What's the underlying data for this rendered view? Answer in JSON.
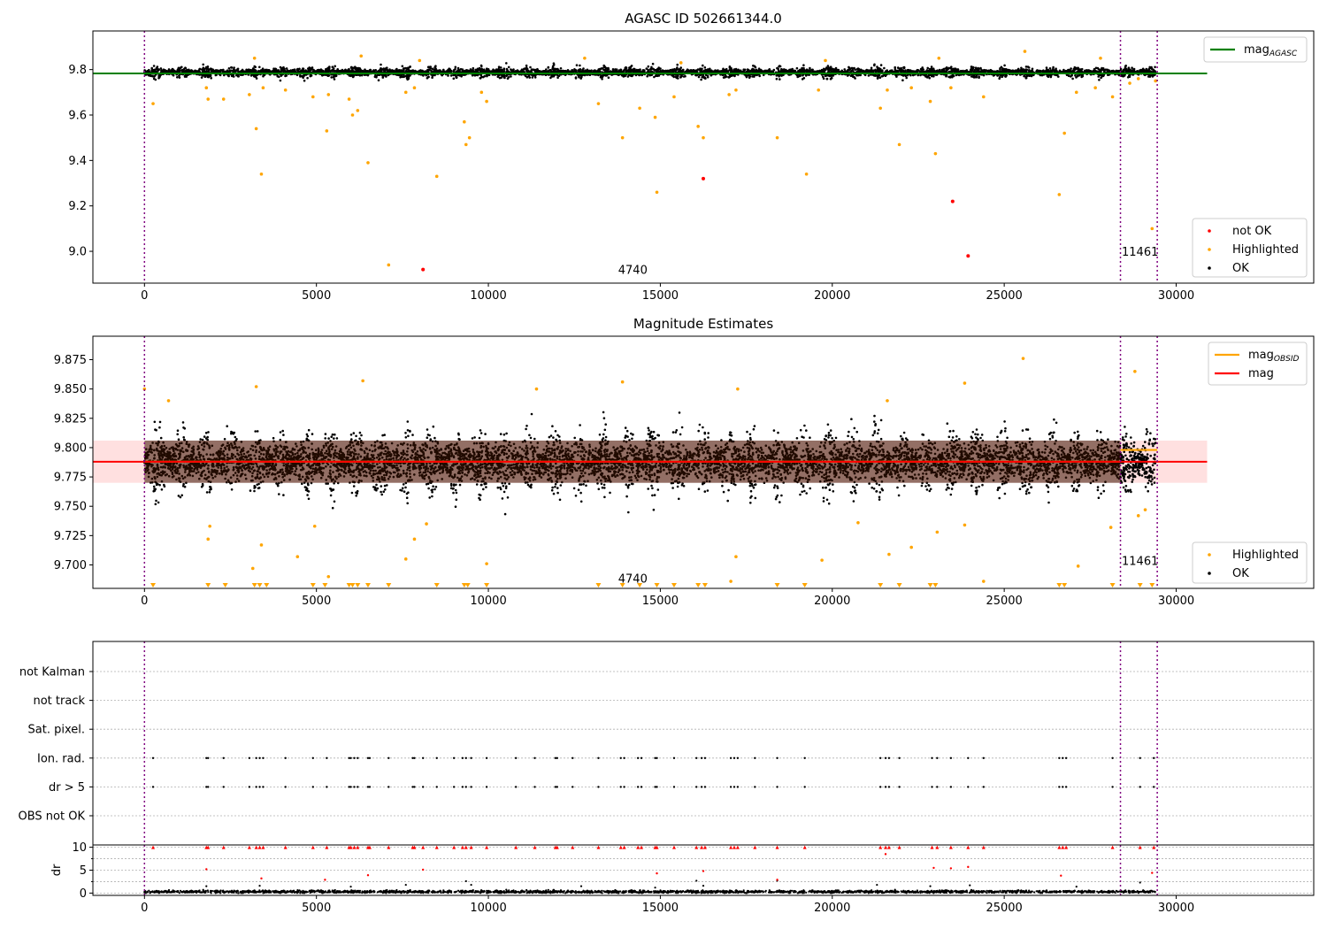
{
  "chart_data": [
    {
      "type": "scatter",
      "title": "AGASC ID 502661344.0",
      "xlim": [
        -1500,
        34000
      ],
      "ylim": [
        8.86,
        9.97
      ],
      "xticks": [
        0,
        5000,
        10000,
        15000,
        20000,
        25000,
        30000
      ],
      "yticks": [
        9.0,
        9.2,
        9.4,
        9.6,
        9.8
      ],
      "ytick_labels": [
        "9.0",
        "9.2",
        "9.4",
        "9.6",
        "9.8"
      ],
      "grid": false,
      "vlines": [
        0,
        28380,
        29450
      ],
      "obsid_annotations": [
        {
          "label": "4740",
          "x": 14200,
          "y": 8.9
        },
        {
          "label": "11461",
          "x": 28950,
          "y": 8.98
        }
      ],
      "reference_line": {
        "name": "mag",
        "subscript": "AGASC",
        "value": 9.783,
        "x_range": [
          -1500,
          30900
        ],
        "color": "#008000"
      },
      "ok_band": {
        "center": 9.788,
        "spread": 0.04,
        "x_range": [
          0,
          29400
        ],
        "color": "#000000"
      },
      "series": [
        {
          "name": "not OK",
          "color": "#ff0000",
          "points": [
            [
              8100,
              8.92
            ],
            [
              16250,
              9.32
            ],
            [
              23500,
              9.22
            ],
            [
              23950,
              8.98
            ]
          ]
        },
        {
          "name": "Highlighted",
          "color": "#ffa500",
          "points": [
            [
              250,
              9.65
            ],
            [
              1800,
              9.72
            ],
            [
              1850,
              9.67
            ],
            [
              2300,
              9.67
            ],
            [
              3050,
              9.69
            ],
            [
              3250,
              9.54
            ],
            [
              3400,
              9.34
            ],
            [
              3450,
              9.72
            ],
            [
              4100,
              9.71
            ],
            [
              4900,
              9.68
            ],
            [
              5300,
              9.53
            ],
            [
              5350,
              9.69
            ],
            [
              5950,
              9.67
            ],
            [
              6050,
              9.6
            ],
            [
              6200,
              9.62
            ],
            [
              6500,
              9.39
            ],
            [
              7100,
              8.94
            ],
            [
              7600,
              9.7
            ],
            [
              7850,
              9.72
            ],
            [
              8500,
              9.33
            ],
            [
              9300,
              9.57
            ],
            [
              9350,
              9.47
            ],
            [
              9450,
              9.5
            ],
            [
              9800,
              9.7
            ],
            [
              9950,
              9.66
            ],
            [
              13200,
              9.65
            ],
            [
              13900,
              9.5
            ],
            [
              14400,
              9.63
            ],
            [
              14850,
              9.59
            ],
            [
              14900,
              9.26
            ],
            [
              15400,
              9.68
            ],
            [
              16100,
              9.55
            ],
            [
              16250,
              9.5
            ],
            [
              17000,
              9.69
            ],
            [
              17200,
              9.71
            ],
            [
              18400,
              9.5
            ],
            [
              19250,
              9.34
            ],
            [
              19600,
              9.71
            ],
            [
              21400,
              9.63
            ],
            [
              21600,
              9.71
            ],
            [
              21950,
              9.47
            ],
            [
              22300,
              9.72
            ],
            [
              22850,
              9.66
            ],
            [
              23000,
              9.43
            ],
            [
              23450,
              9.72
            ],
            [
              24400,
              9.68
            ],
            [
              26600,
              9.25
            ],
            [
              26750,
              9.52
            ],
            [
              27100,
              9.7
            ],
            [
              27650,
              9.72
            ],
            [
              28150,
              9.68
            ],
            [
              28650,
              9.74
            ],
            [
              28900,
              9.76
            ],
            [
              29300,
              9.1
            ],
            [
              29400,
              9.75
            ],
            [
              3200,
              9.85
            ],
            [
              6300,
              9.86
            ],
            [
              8000,
              9.84
            ],
            [
              12800,
              9.85
            ],
            [
              15600,
              9.83
            ],
            [
              19800,
              9.84
            ],
            [
              23100,
              9.85
            ],
            [
              25600,
              9.88
            ],
            [
              27800,
              9.85
            ]
          ]
        }
      ],
      "legends": [
        {
          "position": "top-right",
          "entries": [
            {
              "kind": "line",
              "label": "mag",
              "subscript": "AGASC",
              "color": "#008000"
            }
          ]
        },
        {
          "position": "lower-right",
          "entries": [
            {
              "kind": "dot",
              "label": "not OK",
              "color": "#ff0000"
            },
            {
              "kind": "dot",
              "label": "Highlighted",
              "color": "#ffa500"
            },
            {
              "kind": "dot",
              "label": "OK",
              "color": "#000000"
            }
          ]
        }
      ]
    },
    {
      "type": "scatter",
      "title": "Magnitude Estimates",
      "xlim": [
        -1500,
        34000
      ],
      "ylim": [
        9.68,
        9.895
      ],
      "xticks": [
        0,
        5000,
        10000,
        15000,
        20000,
        25000,
        30000
      ],
      "yticks": [
        9.7,
        9.725,
        9.75,
        9.775,
        9.8,
        9.825,
        9.85,
        9.875
      ],
      "ytick_labels": [
        "9.700",
        "9.725",
        "9.750",
        "9.775",
        "9.800",
        "9.825",
        "9.850",
        "9.875"
      ],
      "grid": false,
      "vlines": [
        0,
        28380,
        29450
      ],
      "obsid_annotations": [
        {
          "label": "4740",
          "x": 14200,
          "y": 9.685
        },
        {
          "label": "11461",
          "x": 28950,
          "y": 9.7
        }
      ],
      "mag_band": {
        "center": 9.788,
        "lower": 9.77,
        "upper": 9.806,
        "x_range": [
          -1500,
          30900
        ],
        "color": "#ff0000"
      },
      "obsid_mags": [
        {
          "value": 9.788,
          "x_range": [
            0,
            28380
          ]
        },
        {
          "value": 9.798,
          "x_range": [
            28380,
            29450
          ]
        }
      ],
      "ok_band": {
        "center": 9.788,
        "spread": 0.045,
        "x_range": [
          0,
          29400
        ],
        "color": "#000000"
      },
      "series": [
        {
          "name": "Highlighted",
          "color": "#ffa500",
          "points": [
            [
              0,
              9.85
            ],
            [
              700,
              9.84
            ],
            [
              1850,
              9.722
            ],
            [
              1900,
              9.733
            ],
            [
              3150,
              9.697
            ],
            [
              3400,
              9.717
            ],
            [
              4450,
              9.707
            ],
            [
              4950,
              9.733
            ],
            [
              5350,
              9.69
            ],
            [
              7600,
              9.705
            ],
            [
              7850,
              9.722
            ],
            [
              8200,
              9.735
            ],
            [
              9950,
              9.701
            ],
            [
              17200,
              9.707
            ],
            [
              17050,
              9.686
            ],
            [
              19700,
              9.704
            ],
            [
              20750,
              9.736
            ],
            [
              21650,
              9.709
            ],
            [
              22300,
              9.715
            ],
            [
              23050,
              9.728
            ],
            [
              23850,
              9.734
            ],
            [
              24400,
              9.686
            ],
            [
              27150,
              9.699
            ],
            [
              28100,
              9.732
            ],
            [
              28900,
              9.742
            ],
            [
              29100,
              9.747
            ],
            [
              6350,
              9.857
            ],
            [
              3250,
              9.852
            ],
            [
              11400,
              9.85
            ],
            [
              13900,
              9.856
            ],
            [
              17250,
              9.85
            ],
            [
              21600,
              9.84
            ],
            [
              23850,
              9.855
            ],
            [
              25550,
              9.876
            ],
            [
              28800,
              9.865
            ]
          ]
        },
        {
          "name": "Highlighted (off-scale)",
          "color": "#ffa500",
          "marker": "triangle-down",
          "y_at_edge": 9.68,
          "x_values": [
            250,
            1850,
            2350,
            3200,
            3350,
            3550,
            4900,
            5250,
            5950,
            6050,
            6200,
            6500,
            7100,
            8500,
            9300,
            9400,
            9950,
            13200,
            13900,
            14400,
            14900,
            15400,
            16100,
            16300,
            18400,
            19200,
            21400,
            21950,
            22850,
            23000,
            26600,
            26750,
            28150,
            28950,
            29300
          ]
        }
      ],
      "legends": [
        {
          "position": "top-right",
          "entries": [
            {
              "kind": "line",
              "label": "mag",
              "subscript": "OBSID",
              "color": "#ffa500"
            },
            {
              "kind": "line",
              "label": "mag",
              "subscript": "",
              "color": "#ff0000"
            }
          ]
        },
        {
          "position": "lower-right",
          "entries": [
            {
              "kind": "dot",
              "label": "Highlighted",
              "color": "#ffa500"
            },
            {
              "kind": "dot",
              "label": "OK",
              "color": "#000000"
            }
          ]
        }
      ]
    },
    {
      "type": "scatter",
      "title": "",
      "xlim": [
        -1500,
        34000
      ],
      "flag_rows": [
        "not Kalman",
        "not track",
        "Sat. pixel.",
        "Ion. rad.",
        "dr > 5",
        "OBS not OK"
      ],
      "flag_points": {
        "Ion. rad.": [
          250,
          1800,
          1850,
          2300,
          3050,
          3250,
          3350,
          3450,
          4100,
          4900,
          5300,
          5950,
          6000,
          6100,
          6200,
          6500,
          6550,
          7100,
          7800,
          7850,
          8100,
          8500,
          9000,
          9250,
          9350,
          9500,
          9950,
          10800,
          11350,
          11950,
          12000,
          12450,
          13200,
          13850,
          13950,
          14350,
          14450,
          14850,
          14900,
          15400,
          16050,
          16200,
          16300,
          17050,
          17150,
          17250,
          17750,
          18400,
          19200,
          21400,
          21550,
          21650,
          21950,
          22900,
          23050,
          23450,
          23950,
          24400,
          26600,
          26700,
          26800,
          28150,
          28950,
          29350
        ],
        "dr > 5": [
          250,
          1800,
          1850,
          2300,
          3050,
          3250,
          3350,
          3450,
          4100,
          4900,
          5300,
          5950,
          6000,
          6100,
          6200,
          6500,
          6550,
          7100,
          7800,
          7850,
          8100,
          8500,
          9000,
          9250,
          9350,
          9500,
          9950,
          10800,
          11350,
          11950,
          12000,
          12450,
          13200,
          13850,
          13950,
          14350,
          14450,
          14850,
          14900,
          15400,
          16050,
          16200,
          16300,
          17050,
          17150,
          17250,
          17750,
          18400,
          19200,
          21400,
          21550,
          21650,
          21950,
          22900,
          23050,
          23450,
          23950,
          24400,
          26600,
          26700,
          26800,
          28150,
          28950,
          29350
        ]
      },
      "vlines": [
        0,
        28380,
        29450
      ]
    },
    {
      "type": "scatter",
      "title": "",
      "ylabel": "dr",
      "xlim": [
        -1500,
        34000
      ],
      "ylim": [
        -0.5,
        10.5
      ],
      "xticks": [
        0,
        5000,
        10000,
        15000,
        20000,
        25000,
        30000
      ],
      "yticks": [
        0,
        5,
        10
      ],
      "ytick_labels": [
        "0",
        "5",
        "10"
      ],
      "grid": true,
      "vlines": [
        0,
        28380,
        29450
      ],
      "capped_value": 10,
      "series": [
        {
          "name": "OK",
          "color": "#000000",
          "band": {
            "center": 0.3,
            "spread": 0.5,
            "x_range": [
              0,
              29400
            ]
          }
        },
        {
          "name": "not OK (capped at 10)",
          "color": "#ff0000",
          "marker": "triangle-up",
          "x_values": [
            250,
            1800,
            1850,
            2300,
            3050,
            3250,
            3350,
            3450,
            4100,
            4900,
            5300,
            5950,
            6000,
            6100,
            6200,
            6500,
            6550,
            7100,
            7800,
            7850,
            8100,
            8500,
            9000,
            9250,
            9350,
            9500,
            9950,
            10800,
            11350,
            11950,
            12000,
            12450,
            13200,
            13850,
            13950,
            14350,
            14450,
            14850,
            14900,
            15400,
            16050,
            16200,
            16300,
            17050,
            17150,
            17250,
            17750,
            18400,
            19200,
            21400,
            21550,
            21650,
            21950,
            22900,
            23050,
            23450,
            23950,
            24400,
            26600,
            26700,
            26800,
            28150,
            28950,
            29350
          ]
        },
        {
          "name": "not OK",
          "color": "#ff0000",
          "points": [
            [
              1800,
              5.2
            ],
            [
              3400,
              3.2
            ],
            [
              5250,
              2.9
            ],
            [
              6500,
              3.9
            ],
            [
              8100,
              5.1
            ],
            [
              14900,
              4.3
            ],
            [
              16250,
              4.8
            ],
            [
              18400,
              2.9
            ],
            [
              21550,
              8.5
            ],
            [
              22950,
              5.5
            ],
            [
              23450,
              5.4
            ],
            [
              23950,
              5.7
            ],
            [
              26650,
              3.8
            ],
            [
              29300,
              4.4
            ]
          ]
        },
        {
          "name": "spikes",
          "color": "#000000",
          "points": [
            [
              1800,
              1.5
            ],
            [
              3350,
              1.6
            ],
            [
              6000,
              1.4
            ],
            [
              7600,
              1.8
            ],
            [
              9350,
              2.6
            ],
            [
              9500,
              1.8
            ],
            [
              12700,
              1.5
            ],
            [
              14850,
              1.2
            ],
            [
              16050,
              2.7
            ],
            [
              16250,
              1.6
            ],
            [
              18400,
              2.7
            ],
            [
              21300,
              1.8
            ],
            [
              22850,
              1.5
            ],
            [
              24000,
              1.7
            ],
            [
              27100,
              1.4
            ],
            [
              28950,
              2.3
            ]
          ]
        }
      ]
    }
  ]
}
